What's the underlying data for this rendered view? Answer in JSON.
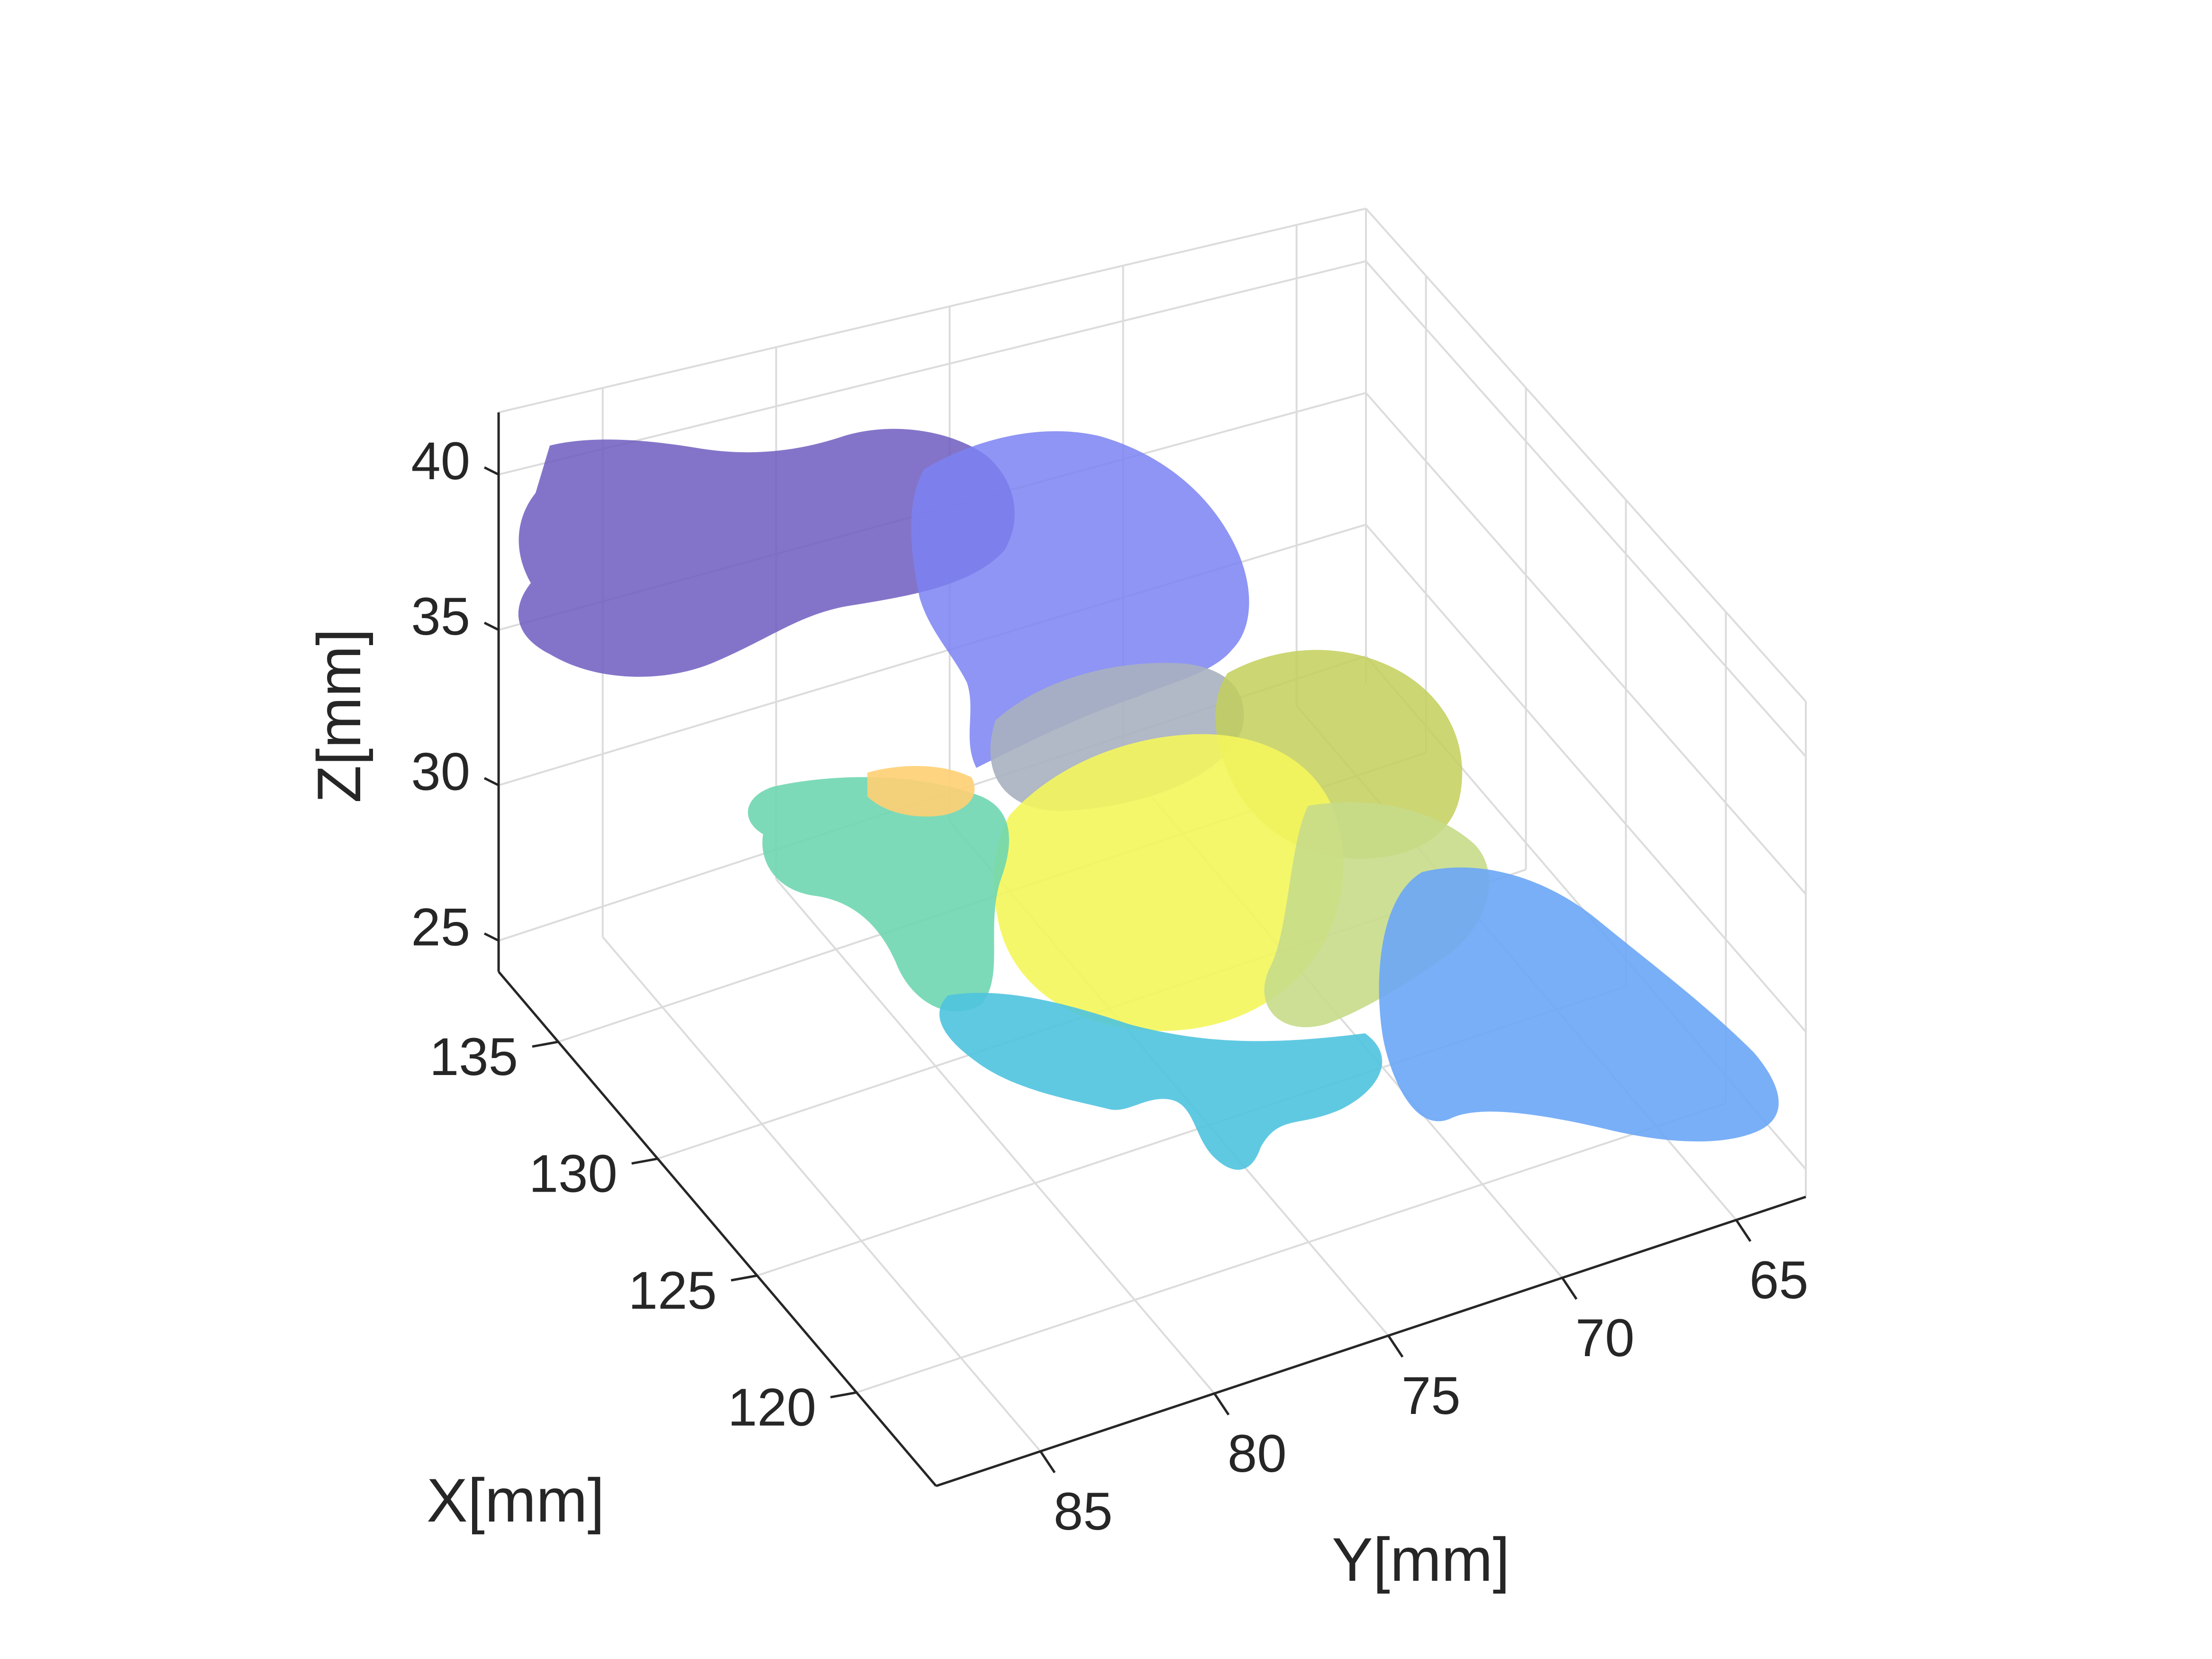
{
  "chart_data": {
    "type": "3d-surface",
    "xlabel": "X[mm]",
    "ylabel": "Y[mm]",
    "zlabel": "Z[mm]",
    "x_ticks": [
      120,
      125,
      130,
      135
    ],
    "y_ticks": [
      85,
      80,
      75,
      70,
      65
    ],
    "z_ticks": [
      25,
      30,
      35,
      40
    ],
    "xlim": [
      116,
      138
    ],
    "ylim": [
      63,
      88
    ],
    "zlim": [
      24,
      42
    ],
    "grid": true,
    "surfaces": [
      {
        "region": "upper-left",
        "color": "#6f5cc0",
        "opacity": 0.85
      },
      {
        "region": "upper-middle",
        "color": "#7b83f2",
        "opacity": 0.85
      },
      {
        "region": "center-gray",
        "color": "#a9b0c0",
        "opacity": 0.9
      },
      {
        "region": "right-olive",
        "color": "#c3cf5a",
        "opacity": 0.85
      },
      {
        "region": "center-yellow",
        "color": "#f4f65b",
        "opacity": 0.9
      },
      {
        "region": "right-pale",
        "color": "#c6dc8a",
        "opacity": 0.9
      },
      {
        "region": "left-teal",
        "color": "#6fd6b0",
        "opacity": 0.9
      },
      {
        "region": "orange-patch",
        "color": "#ffcf73",
        "opacity": 0.9
      },
      {
        "region": "bottom-cyan",
        "color": "#4fc3df",
        "opacity": 0.9
      },
      {
        "region": "right-blue",
        "color": "#6aa6f6",
        "opacity": 0.9
      }
    ]
  }
}
